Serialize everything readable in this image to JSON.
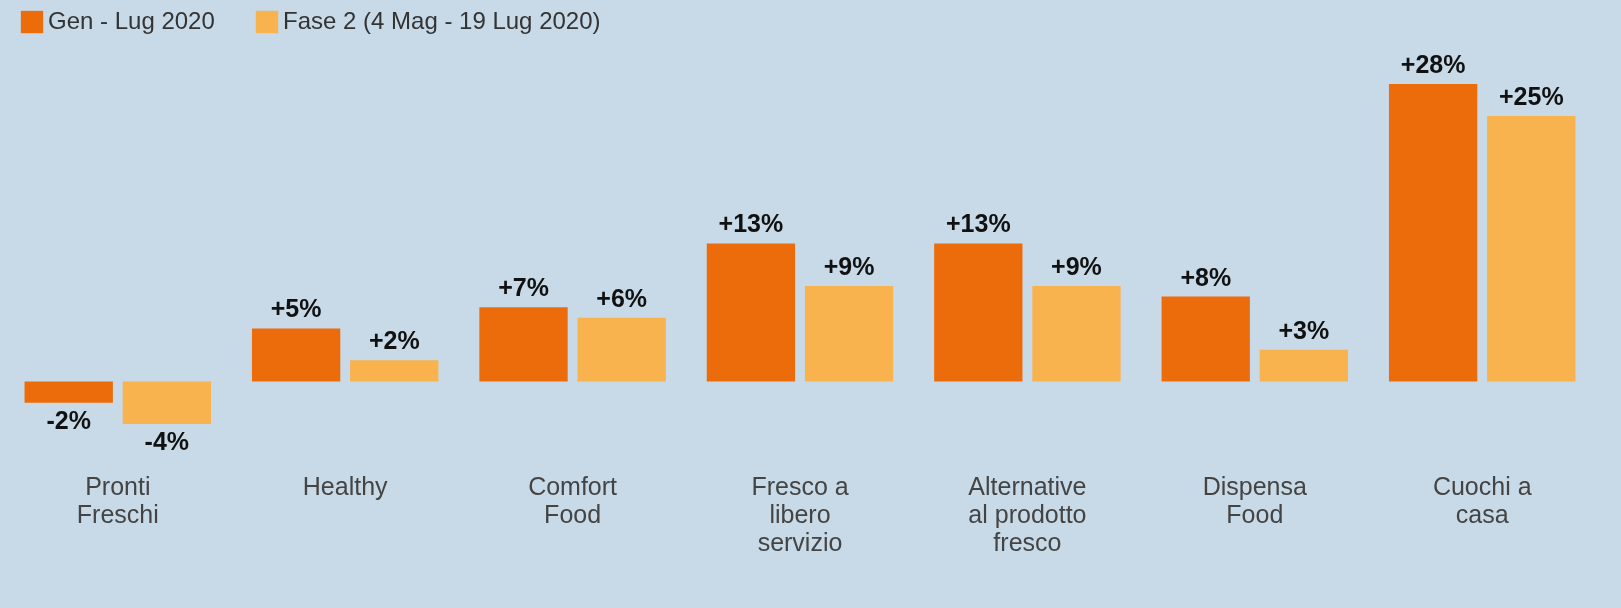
{
  "chart_data": {
    "type": "bar",
    "categories": [
      "Pronti Freschi",
      "Healthy",
      "Comfort Food",
      "Fresco a libero servizio",
      "Alternative al prodotto fresco",
      "Dispensa Food",
      "Cuochi a casa"
    ],
    "series": [
      {
        "name": "Gen - Lug 2020",
        "color": "#ec6c0c",
        "values": [
          -2,
          5,
          7,
          13,
          13,
          8,
          28
        ],
        "value_labels": [
          "-2%",
          "+5%",
          "+7%",
          "+13%",
          "+13%",
          "+8%",
          "+28%"
        ]
      },
      {
        "name": "Fase 2 (4 Mag - 19 Lug 2020)",
        "color": "#f8b24e",
        "values": [
          -4,
          2,
          6,
          9,
          9,
          3,
          25
        ],
        "value_labels": [
          "-4%",
          "+2%",
          "+6%",
          "+9%",
          "+9%",
          "+3%",
          "+25%"
        ]
      }
    ],
    "legend": "top left",
    "grid": false
  }
}
